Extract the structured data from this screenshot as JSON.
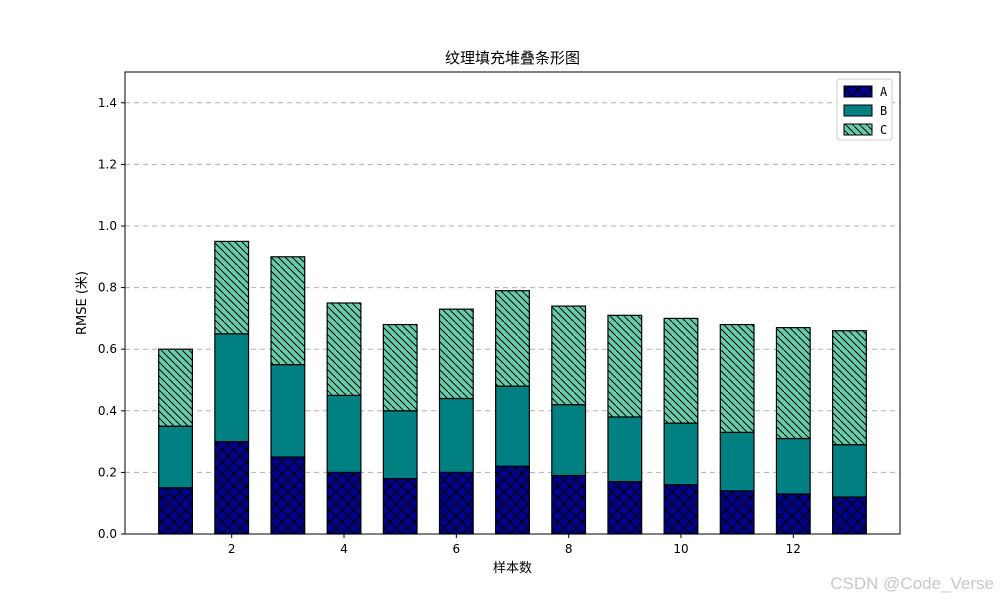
{
  "chart_data": {
    "type": "bar",
    "stacked": true,
    "title": "纹理填充堆叠条形图",
    "xlabel": "样本数",
    "ylabel": "RMSE (米)",
    "x": [
      1,
      2,
      3,
      4,
      5,
      6,
      7,
      8,
      9,
      10,
      11,
      12,
      13
    ],
    "x_ticks": [
      2,
      4,
      6,
      8,
      10,
      12
    ],
    "ylim": [
      0,
      1.5
    ],
    "y_ticks": [
      0.0,
      0.2,
      0.4,
      0.6,
      0.8,
      1.0,
      1.2,
      1.4
    ],
    "y_tick_labels": [
      "0.0",
      "0.2",
      "0.4",
      "0.6",
      "0.8",
      "1.0",
      "1.2",
      "1.4"
    ],
    "grid": "horizontal dashed",
    "legend_position": "top-right",
    "series": [
      {
        "name": "A",
        "color": "#00008b",
        "hatch": "crosshatch",
        "values": [
          0.15,
          0.3,
          0.25,
          0.2,
          0.18,
          0.2,
          0.22,
          0.19,
          0.17,
          0.16,
          0.14,
          0.13,
          0.12
        ]
      },
      {
        "name": "B",
        "color": "#008080",
        "hatch": "none",
        "values": [
          0.2,
          0.35,
          0.3,
          0.25,
          0.22,
          0.24,
          0.26,
          0.23,
          0.21,
          0.2,
          0.19,
          0.18,
          0.17
        ]
      },
      {
        "name": "C",
        "color": "#66cdaa",
        "hatch": "backslash",
        "values": [
          0.25,
          0.3,
          0.35,
          0.3,
          0.28,
          0.29,
          0.31,
          0.32,
          0.33,
          0.34,
          0.35,
          0.36,
          0.37
        ]
      }
    ]
  },
  "watermark": "CSDN @Code_Verse"
}
